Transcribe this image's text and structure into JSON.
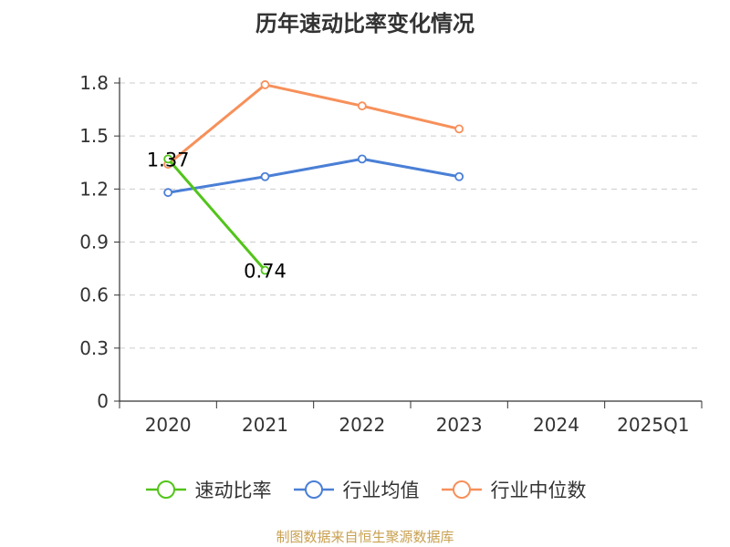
{
  "chart_data": {
    "type": "line",
    "title": "历年速动比率变化情况",
    "categories": [
      "2020",
      "2021",
      "2022",
      "2023",
      "2024",
      "2025Q1"
    ],
    "y_ticks": [
      "0",
      "0.3",
      "0.6",
      "0.9",
      "1.2",
      "1.5",
      "1.8"
    ],
    "ylim": [
      0,
      1.8
    ],
    "grid": true,
    "legend_position": "bottom",
    "series": [
      {
        "name": "速动比率",
        "color": "#52c41a",
        "values": [
          1.37,
          0.74,
          null,
          null,
          null,
          null
        ],
        "labels": [
          "1.37",
          "0.74",
          "",
          "",
          "",
          ""
        ]
      },
      {
        "name": "行业均值",
        "color": "#4a7fd6",
        "values": [
          1.18,
          1.27,
          1.37,
          1.27,
          null,
          null
        ]
      },
      {
        "name": "行业中位数",
        "color": "#f7905a",
        "values": [
          1.34,
          1.79,
          1.67,
          1.54,
          null,
          null
        ]
      }
    ]
  },
  "footer": {
    "source": "制图数据来自恒生聚源数据库"
  }
}
